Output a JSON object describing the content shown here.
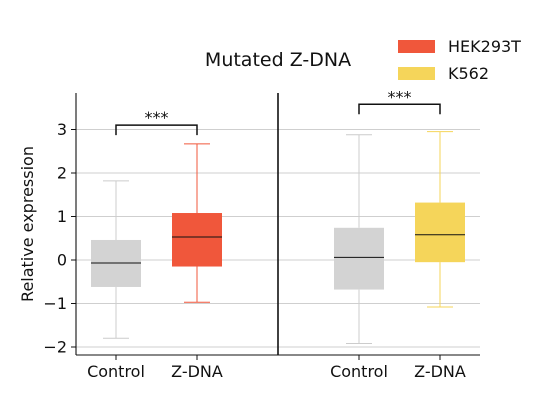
{
  "chart_data": {
    "type": "box",
    "title": "Mutated Z-DNA",
    "ylabel": "Relative expression",
    "xlabel": "",
    "ylim": [
      -2.2,
      3.9
    ],
    "yticks": [
      -2,
      -1,
      0,
      1,
      2,
      3
    ],
    "ytick_labels": [
      "−2",
      "−1",
      "0",
      "1",
      "2",
      "3"
    ],
    "grid": "horizontal",
    "legend_position": "top-right",
    "legend": [
      {
        "label": "HEK293T",
        "color": "#F0573B"
      },
      {
        "label": "K562",
        "color": "#F5D55A"
      }
    ],
    "panels": [
      {
        "panel": "HEK293T",
        "groups": [
          {
            "label": "Control",
            "color": "#D3D3D3",
            "whisker_color": "#CCCCCC",
            "whisker_low": -1.8,
            "q1": -0.62,
            "median": -0.07,
            "q3": 0.46,
            "whisker_high": 1.82
          },
          {
            "label": "Z-DNA",
            "color": "#F0573B",
            "whisker_color": "#F0573B",
            "whisker_low": -0.97,
            "q1": -0.15,
            "median": 0.53,
            "q3": 1.08,
            "whisker_high": 2.67
          }
        ],
        "significance": "***",
        "bracket_y": 3.1
      },
      {
        "panel": "K562",
        "groups": [
          {
            "label": "Control",
            "color": "#D3D3D3",
            "whisker_color": "#CCCCCC",
            "whisker_low": -1.92,
            "q1": -0.68,
            "median": 0.06,
            "q3": 0.74,
            "whisker_high": 2.88
          },
          {
            "label": "Z-DNA",
            "color": "#F5D55A",
            "whisker_color": "#F5D55A",
            "whisker_low": -1.08,
            "q1": -0.05,
            "median": 0.58,
            "q3": 1.32,
            "whisker_high": 2.95
          }
        ],
        "significance": "***",
        "bracket_y": 3.58
      }
    ]
  }
}
